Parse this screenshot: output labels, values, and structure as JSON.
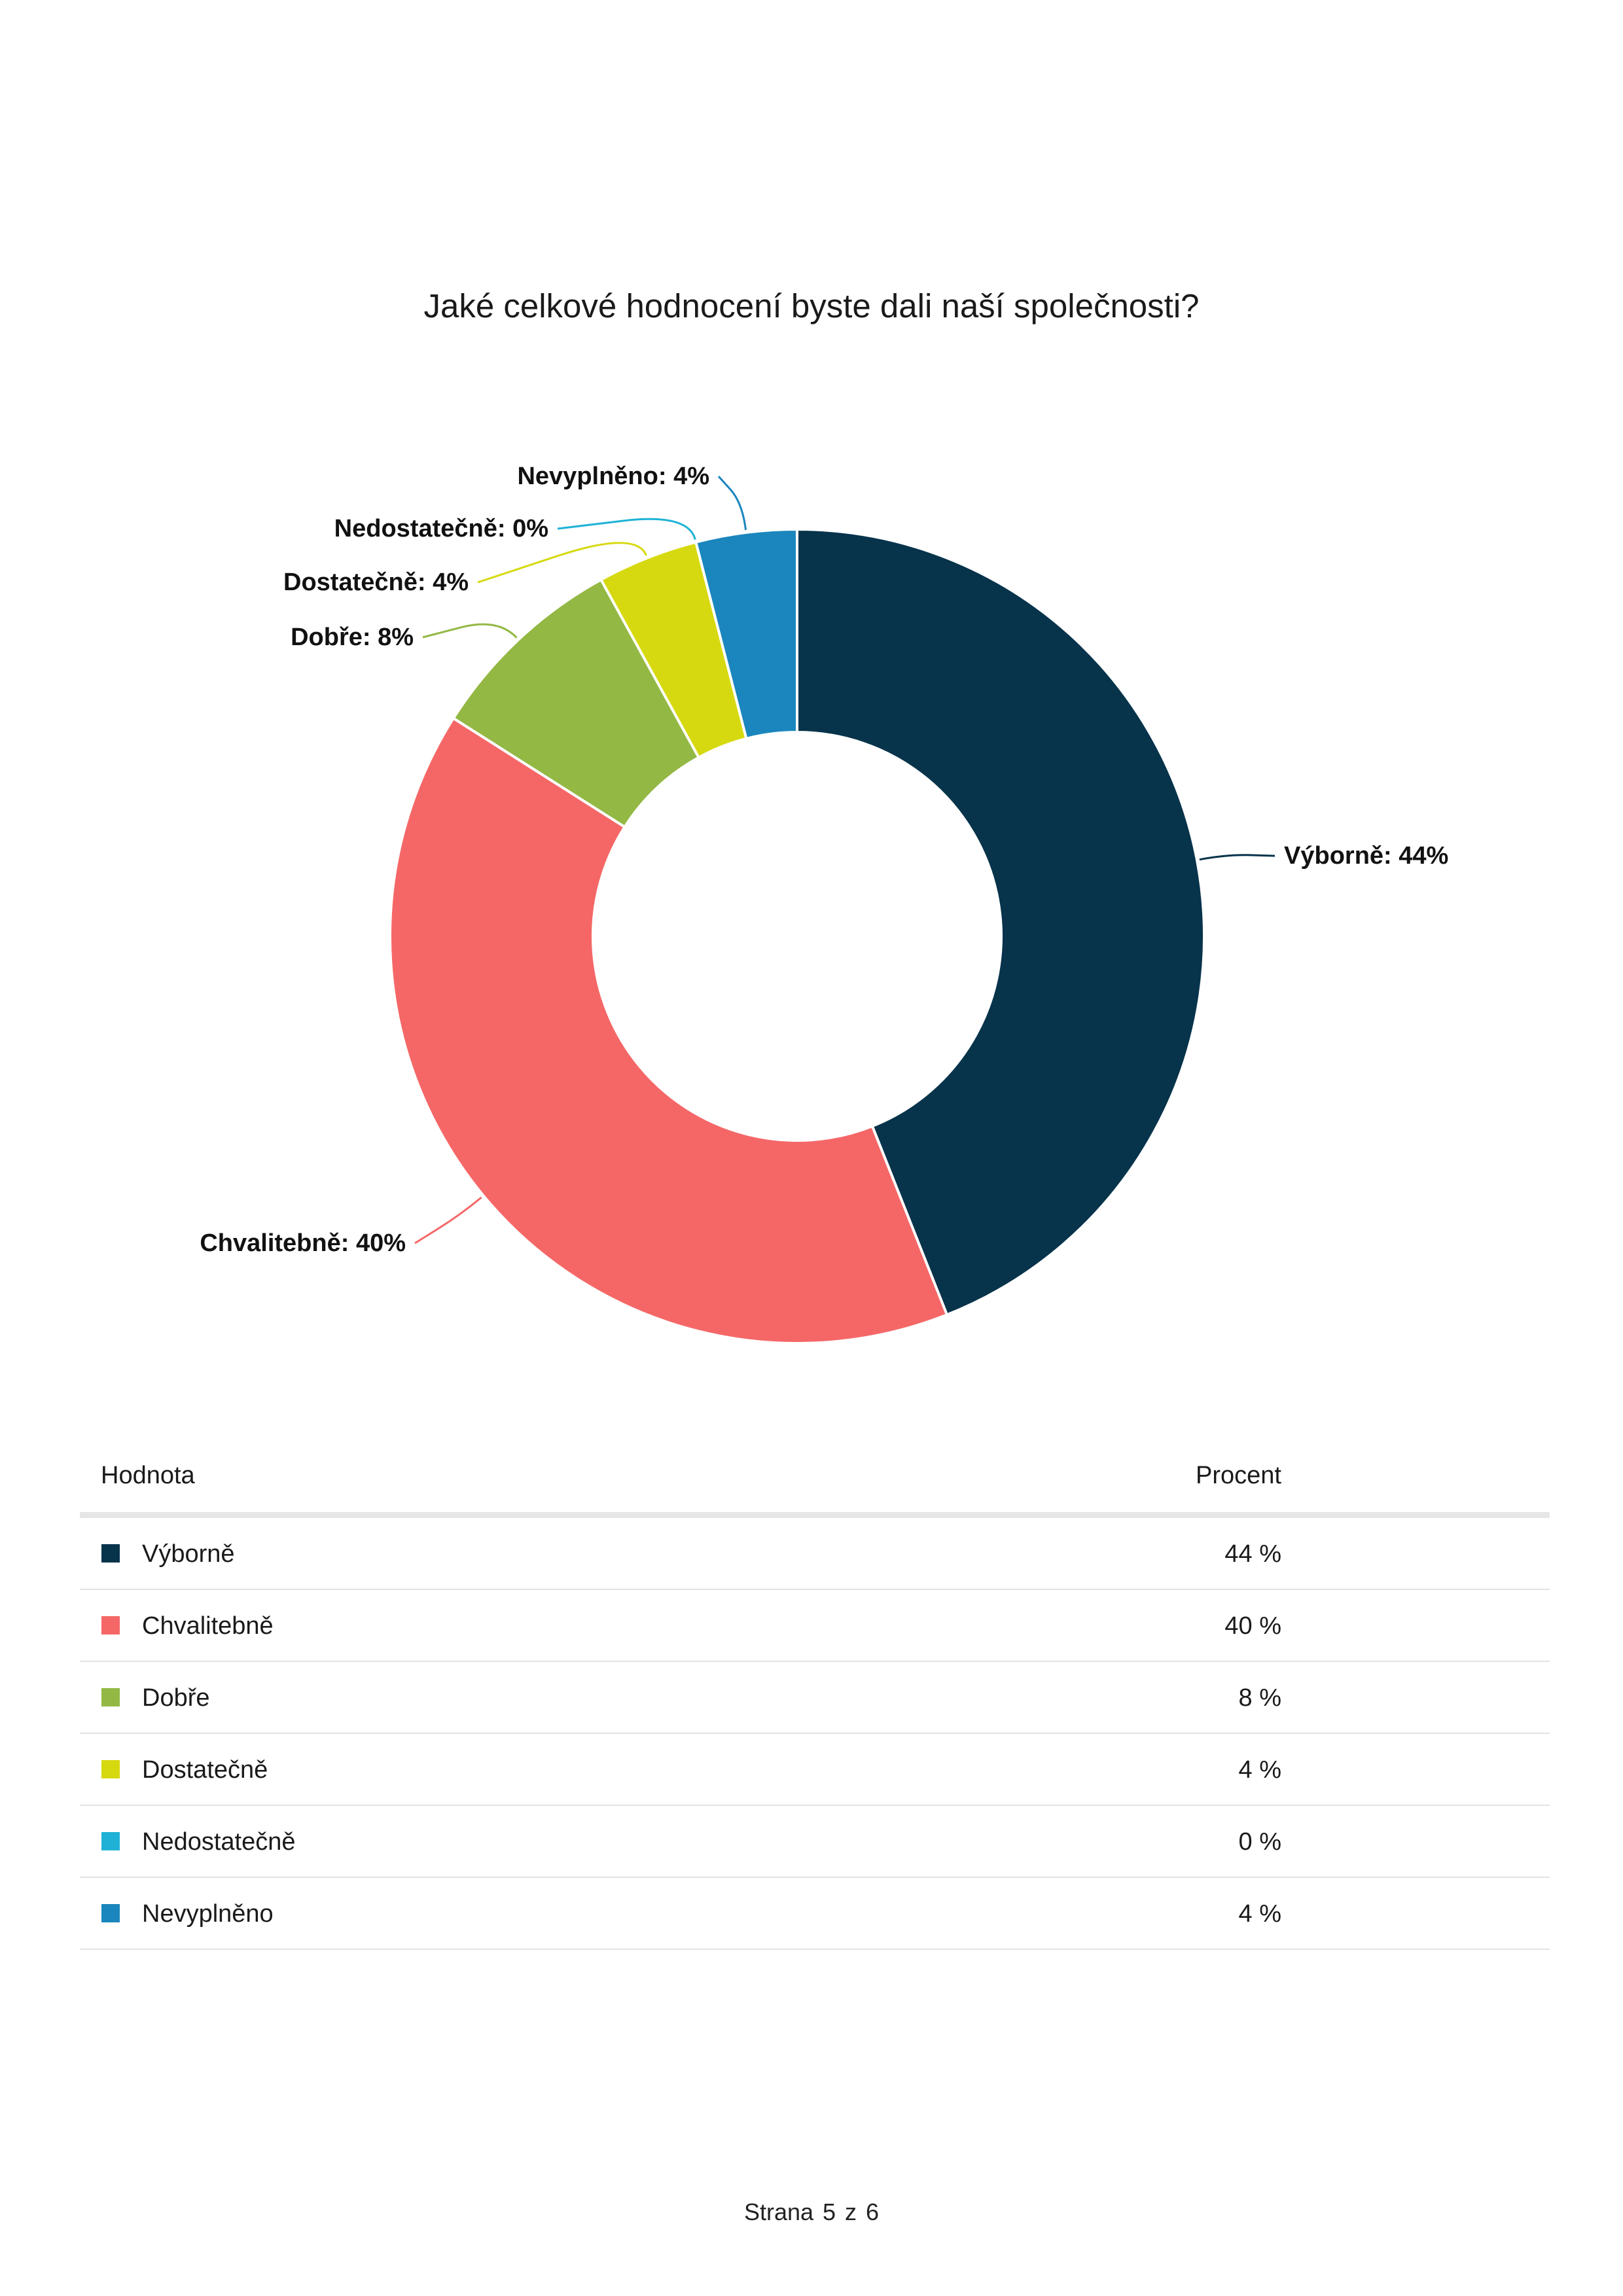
{
  "chart_data": {
    "type": "pie",
    "donut": true,
    "title": "Jaké celkové hodnocení byste dali naší společnosti?",
    "categories": [
      "Výborně",
      "Chvalitebně",
      "Dobře",
      "Dostatečně",
      "Nedostatečně",
      "Nevyplněno"
    ],
    "values": [
      44,
      40,
      8,
      4,
      0,
      4
    ],
    "unit": "%",
    "colors": [
      "#07334b",
      "#f56767",
      "#93b844",
      "#d6d90f",
      "#1fb2d6",
      "#1b86bd"
    ],
    "slice_labels": [
      "Výborně: 44%",
      "Chvalitebně: 40%",
      "Dobře: 8%",
      "Dostatečně: 4%",
      "Nedostatečně: 0%",
      "Nevyplněno: 4%"
    ]
  },
  "table": {
    "headers": {
      "value": "Hodnota",
      "percent": "Procent"
    },
    "rows": [
      {
        "label": "Výborně",
        "percent": "44 %",
        "color": "#07334b"
      },
      {
        "label": "Chvalitebně",
        "percent": "40 %",
        "color": "#f56767"
      },
      {
        "label": "Dobře",
        "percent": "8 %",
        "color": "#93b844"
      },
      {
        "label": "Dostatečně",
        "percent": "4 %",
        "color": "#d6d90f"
      },
      {
        "label": "Nedostatečně",
        "percent": "0 %",
        "color": "#1fb2d6"
      },
      {
        "label": "Nevyplněno",
        "percent": "4 %",
        "color": "#1b86bd"
      }
    ]
  },
  "footer": {
    "page_text": "Strana 5 z 6"
  }
}
